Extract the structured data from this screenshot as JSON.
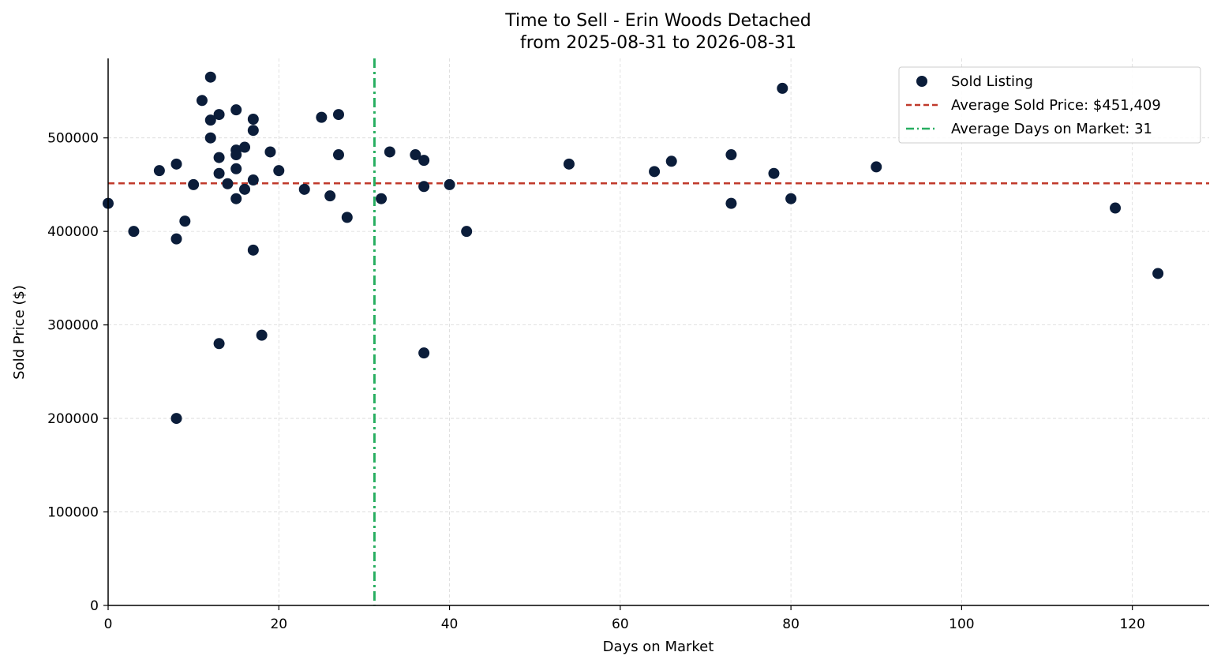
{
  "chart_data": {
    "type": "scatter",
    "title": "Time to Sell - Erin Woods Detached",
    "subtitle": "from 2025-08-31 to 2026-08-31",
    "xlabel": "Days on Market",
    "ylabel": "Sold Price ($)",
    "xlim": [
      0,
      129
    ],
    "ylim": [
      0,
      585000
    ],
    "xticks": [
      0,
      20,
      40,
      60,
      80,
      100,
      120
    ],
    "yticks": [
      0,
      100000,
      200000,
      300000,
      400000,
      500000
    ],
    "grid": true,
    "legend_position": "top-right",
    "colors": {
      "points": "#0b1d3a",
      "avg_price_line": "#c0392b",
      "avg_days_line": "#27ae60",
      "grid": "#d9d9d9",
      "axis": "#000000"
    },
    "series": [
      {
        "name": "Sold Listing",
        "type": "scatter",
        "points": [
          [
            0,
            430000
          ],
          [
            3,
            400000
          ],
          [
            6,
            465000
          ],
          [
            8,
            472000
          ],
          [
            8,
            392000
          ],
          [
            8,
            200000
          ],
          [
            9,
            411000
          ],
          [
            10,
            450000
          ],
          [
            11,
            540000
          ],
          [
            12,
            565000
          ],
          [
            12,
            519000
          ],
          [
            12,
            500000
          ],
          [
            13,
            525000
          ],
          [
            13,
            479000
          ],
          [
            13,
            462000
          ],
          [
            13,
            280000
          ],
          [
            14,
            451000
          ],
          [
            15,
            530000
          ],
          [
            15,
            487000
          ],
          [
            15,
            482000
          ],
          [
            15,
            467000
          ],
          [
            15,
            435000
          ],
          [
            16,
            490000
          ],
          [
            16,
            445000
          ],
          [
            17,
            520000
          ],
          [
            17,
            508000
          ],
          [
            17,
            455000
          ],
          [
            17,
            380000
          ],
          [
            18,
            289000
          ],
          [
            19,
            485000
          ],
          [
            20,
            465000
          ],
          [
            23,
            445000
          ],
          [
            25,
            522000
          ],
          [
            26,
            438000
          ],
          [
            27,
            525000
          ],
          [
            27,
            482000
          ],
          [
            28,
            415000
          ],
          [
            32,
            435000
          ],
          [
            33,
            485000
          ],
          [
            36,
            482000
          ],
          [
            37,
            476000
          ],
          [
            37,
            448000
          ],
          [
            37,
            270000
          ],
          [
            40,
            450000
          ],
          [
            42,
            400000
          ],
          [
            54,
            472000
          ],
          [
            64,
            464000
          ],
          [
            66,
            475000
          ],
          [
            73,
            482000
          ],
          [
            73,
            430000
          ],
          [
            78,
            462000
          ],
          [
            79,
            553000
          ],
          [
            80,
            435000
          ],
          [
            90,
            469000
          ],
          [
            118,
            425000
          ],
          [
            123,
            355000
          ]
        ]
      },
      {
        "name": "Average Sold Price: $451,409",
        "type": "hline",
        "value": 451409
      },
      {
        "name": "Average Days on Market: 31",
        "type": "vline",
        "value": 31.2
      }
    ]
  }
}
